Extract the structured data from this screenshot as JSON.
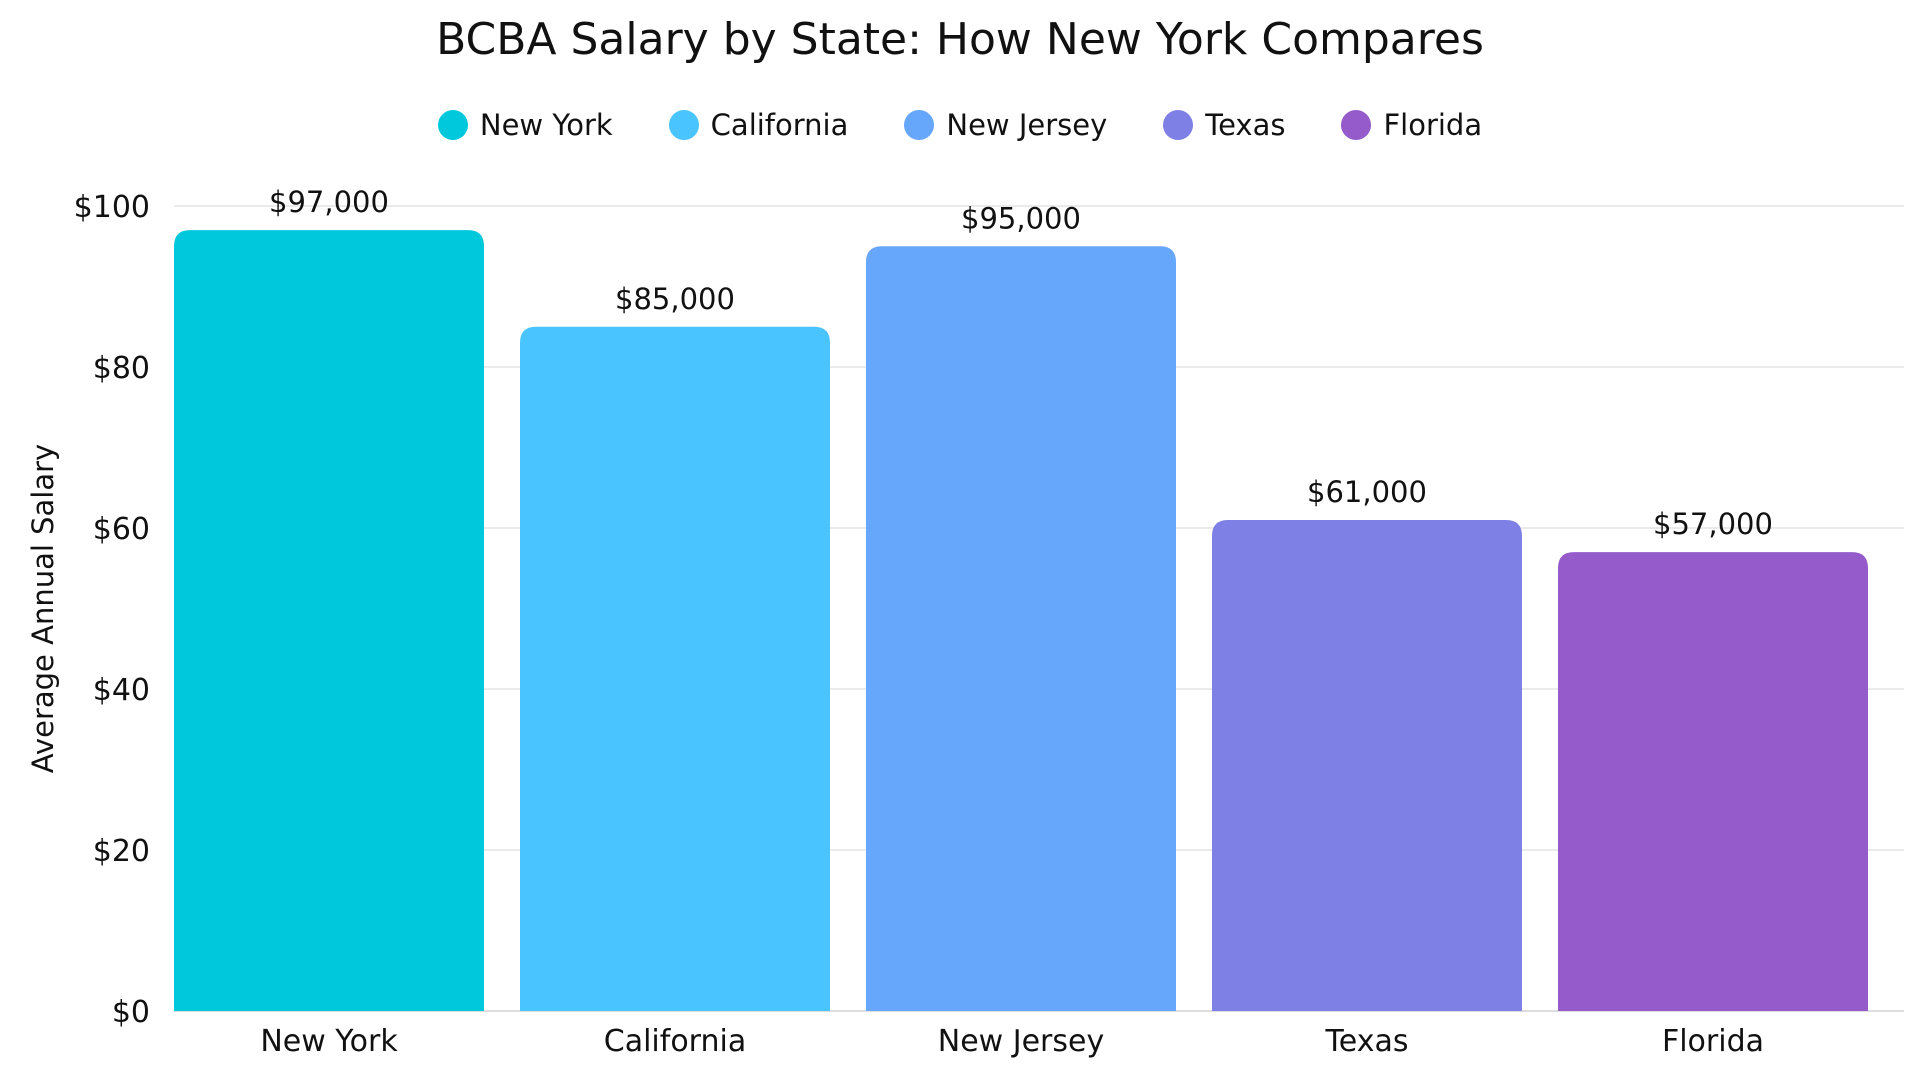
{
  "chart_data": {
    "type": "bar",
    "title": "BCBA Salary by State: How New York Compares",
    "ylabel": "Average Annual Salary",
    "xlabel": "",
    "categories": [
      "New York",
      "California",
      "New Jersey",
      "Texas",
      "Florida"
    ],
    "values": [
      97000,
      85000,
      95000,
      61000,
      57000
    ],
    "value_labels": [
      "$97,000",
      "$85,000",
      "$95,000",
      "$61,000",
      "$57,000"
    ],
    "colors": [
      "#00c8dc",
      "#4ac4ff",
      "#66a6fb",
      "#7e80e6",
      "#955bcb"
    ],
    "ylim": [
      0,
      100
    ],
    "y_ticks": [
      0,
      20,
      40,
      60,
      80,
      100
    ],
    "y_tick_labels": [
      "$0",
      "$20",
      "$40",
      "$60",
      "$80",
      "$100"
    ],
    "legend_position": "top-center",
    "grid": true
  }
}
